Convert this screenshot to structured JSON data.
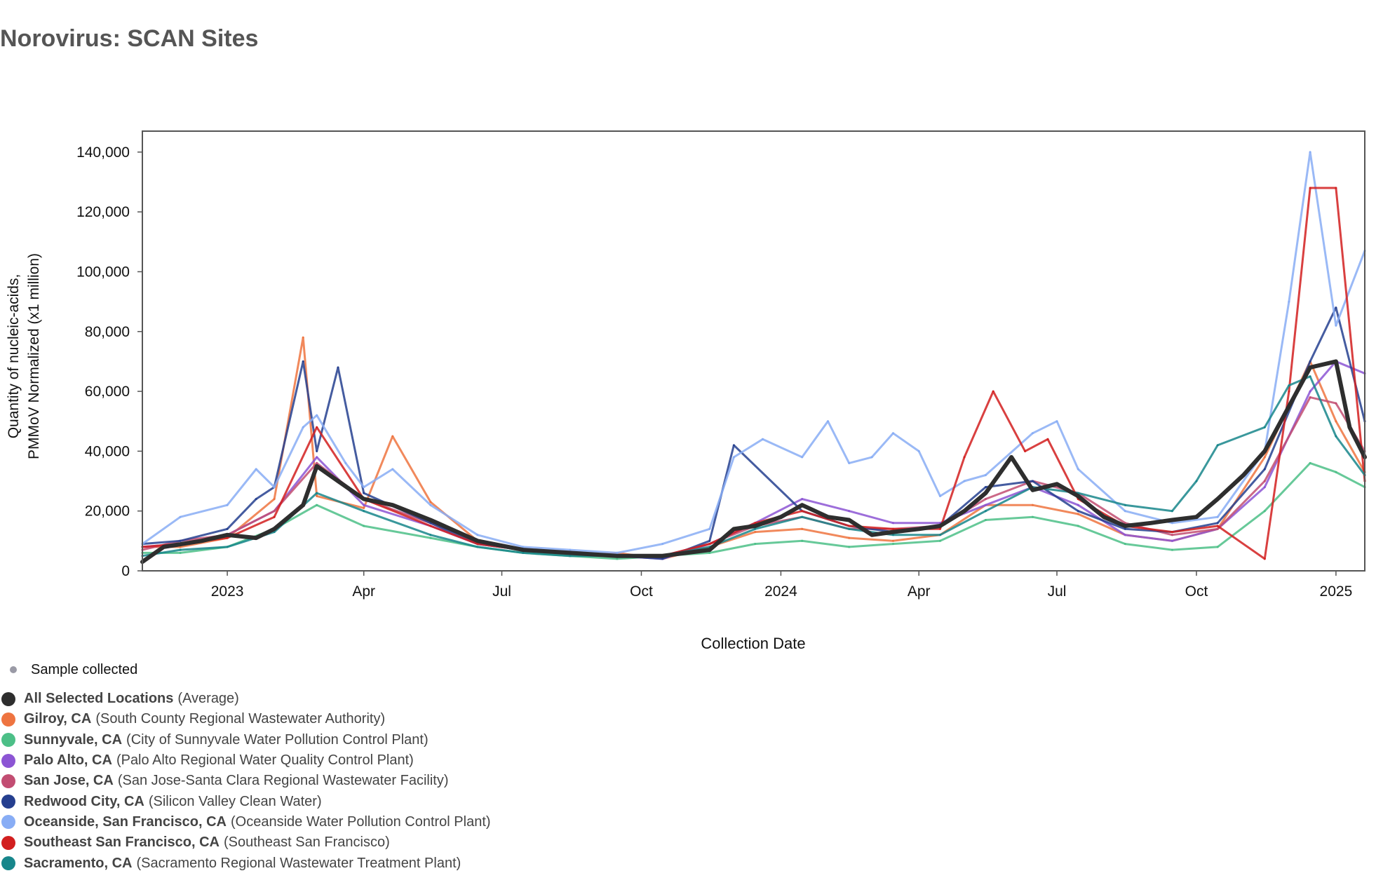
{
  "title": "Norovirus: SCAN Sites",
  "legend": {
    "sample_label": "Sample collected",
    "items": [
      {
        "name": "All Selected Locations",
        "detail": "(Average)",
        "color": "#2e2e2e"
      },
      {
        "name": "Gilroy, CA",
        "detail": "(South County Regional Wastewater Authority)",
        "color": "#ee7440"
      },
      {
        "name": "Sunnyvale, CA",
        "detail": "(City of Sunnyvale Water Pollution Control Plant)",
        "color": "#4cbf87"
      },
      {
        "name": "Palo Alto, CA",
        "detail": "(Palo Alto Regional Water Quality Control Plant)",
        "color": "#8c55d4"
      },
      {
        "name": "San Jose, CA",
        "detail": "(San Jose-Santa Clara Regional Wastewater Facility)",
        "color": "#c24d72"
      },
      {
        "name": "Redwood City, CA",
        "detail": "(Silicon Valley Clean Water)",
        "color": "#253f8f"
      },
      {
        "name": "Oceanside, San Francisco, CA",
        "detail": "(Oceanside Water Pollution Control Plant)",
        "color": "#88adf5"
      },
      {
        "name": "Southeast San Francisco, CA",
        "detail": "(Southeast San Francisco)",
        "color": "#d21f1f"
      },
      {
        "name": "Sacramento, CA",
        "detail": "(Sacramento Regional Wastewater Treatment Plant)",
        "color": "#17868b"
      }
    ]
  },
  "chart_data": {
    "type": "line",
    "xlabel": "Collection Date",
    "ylabel_lines": [
      "Quantity of nucleic-acids,",
      "PMMoV Normalized (x1 million)"
    ],
    "xlim": [
      "2022-11-06",
      "2025-01-20"
    ],
    "ylim": [
      0,
      147000
    ],
    "x_ticks": [
      {
        "date": "2023-01-01",
        "label": "2023"
      },
      {
        "date": "2023-04-01",
        "label": "Apr"
      },
      {
        "date": "2023-07-01",
        "label": "Jul"
      },
      {
        "date": "2023-10-01",
        "label": "Oct"
      },
      {
        "date": "2024-01-01",
        "label": "2024"
      },
      {
        "date": "2024-04-01",
        "label": "Apr"
      },
      {
        "date": "2024-07-01",
        "label": "Jul"
      },
      {
        "date": "2024-10-01",
        "label": "Oct"
      },
      {
        "date": "2025-01-01",
        "label": "2025"
      }
    ],
    "y_ticks": [
      {
        "value": 0,
        "label": "0"
      },
      {
        "value": 20000,
        "label": "20,000"
      },
      {
        "value": 40000,
        "label": "40,000"
      },
      {
        "value": 60000,
        "label": "60,000"
      },
      {
        "value": 80000,
        "label": "80,000"
      },
      {
        "value": 100000,
        "label": "100,000"
      },
      {
        "value": 120000,
        "label": "120,000"
      },
      {
        "value": 140000,
        "label": "140,000"
      }
    ],
    "grid": false,
    "series": [
      {
        "name": "Gilroy, CA",
        "color": "#ee7440",
        "x": [
          "2022-11-06",
          "2022-12-01",
          "2023-01-01",
          "2023-02-01",
          "2023-02-20",
          "2023-03-01",
          "2023-04-01",
          "2023-04-20",
          "2023-05-15",
          "2023-06-15",
          "2023-07-15",
          "2023-08-15",
          "2023-09-15",
          "2023-10-15",
          "2023-11-15",
          "2023-12-15",
          "2024-01-15",
          "2024-02-15",
          "2024-03-15",
          "2024-04-15",
          "2024-05-15",
          "2024-06-15",
          "2024-07-15",
          "2024-08-15",
          "2024-09-15",
          "2024-10-15",
          "2024-11-15",
          "2024-12-15",
          "2025-01-01",
          "2025-01-20"
        ],
        "values": [
          8000,
          8000,
          11000,
          24000,
          78000,
          25000,
          21000,
          45000,
          23000,
          10000,
          7000,
          5000,
          6000,
          4000,
          8000,
          13000,
          14000,
          11000,
          10000,
          12000,
          22000,
          22000,
          19000,
          12000,
          10000,
          14000,
          38000,
          70000,
          50000,
          33000
        ]
      },
      {
        "name": "Sunnyvale, CA",
        "color": "#4cbf87",
        "x": [
          "2022-11-06",
          "2022-12-01",
          "2023-01-01",
          "2023-02-01",
          "2023-03-01",
          "2023-04-01",
          "2023-05-15",
          "2023-06-15",
          "2023-07-15",
          "2023-08-15",
          "2023-09-15",
          "2023-10-15",
          "2023-11-15",
          "2023-12-15",
          "2024-01-15",
          "2024-02-15",
          "2024-03-15",
          "2024-04-15",
          "2024-05-15",
          "2024-06-15",
          "2024-07-15",
          "2024-08-15",
          "2024-09-15",
          "2024-10-15",
          "2024-11-15",
          "2024-12-15",
          "2025-01-01",
          "2025-01-20"
        ],
        "values": [
          6000,
          6000,
          8000,
          14000,
          22000,
          15000,
          11000,
          8000,
          6000,
          5000,
          4000,
          5000,
          6000,
          9000,
          10000,
          8000,
          9000,
          10000,
          17000,
          18000,
          15000,
          9000,
          7000,
          8000,
          20000,
          36000,
          33000,
          28000
        ]
      },
      {
        "name": "Palo Alto, CA",
        "color": "#8c55d4",
        "x": [
          "2022-11-06",
          "2022-12-01",
          "2023-01-01",
          "2023-02-01",
          "2023-03-01",
          "2023-04-01",
          "2023-05-15",
          "2023-06-15",
          "2023-07-15",
          "2023-08-15",
          "2023-09-15",
          "2023-10-15",
          "2023-11-15",
          "2023-12-15",
          "2024-01-15",
          "2024-02-15",
          "2024-03-15",
          "2024-04-15",
          "2024-05-15",
          "2024-06-15",
          "2024-07-15",
          "2024-08-15",
          "2024-09-15",
          "2024-10-15",
          "2024-11-15",
          "2024-12-15",
          "2025-01-01",
          "2025-01-20"
        ],
        "values": [
          8000,
          9000,
          12000,
          20000,
          38000,
          22000,
          15000,
          9000,
          7000,
          6000,
          5000,
          4000,
          9000,
          16000,
          24000,
          20000,
          16000,
          16000,
          22000,
          28000,
          22000,
          12000,
          10000,
          14000,
          28000,
          60000,
          70000,
          66000
        ]
      },
      {
        "name": "San Jose, CA",
        "color": "#c24d72",
        "x": [
          "2022-11-06",
          "2022-12-01",
          "2023-01-01",
          "2023-02-01",
          "2023-03-01",
          "2023-04-01",
          "2023-05-15",
          "2023-06-15",
          "2023-07-15",
          "2023-08-15",
          "2023-09-15",
          "2023-10-15",
          "2023-11-15",
          "2023-12-15",
          "2024-01-15",
          "2024-02-15",
          "2024-03-15",
          "2024-04-15",
          "2024-05-15",
          "2024-06-15",
          "2024-07-15",
          "2024-08-15",
          "2024-09-15",
          "2024-10-15",
          "2024-11-15",
          "2024-12-15",
          "2025-01-01",
          "2025-01-20"
        ],
        "values": [
          7000,
          10000,
          12000,
          20000,
          36000,
          24000,
          16000,
          10000,
          7000,
          6000,
          5000,
          5000,
          9000,
          15000,
          18000,
          14000,
          14000,
          15000,
          24000,
          30000,
          26000,
          16000,
          12000,
          14000,
          30000,
          58000,
          56000,
          40000
        ]
      },
      {
        "name": "Redwood City, CA",
        "color": "#253f8f",
        "x": [
          "2022-11-06",
          "2022-12-01",
          "2023-01-01",
          "2023-01-20",
          "2023-02-01",
          "2023-02-20",
          "2023-03-01",
          "2023-03-15",
          "2023-04-01",
          "2023-05-15",
          "2023-06-15",
          "2023-07-15",
          "2023-08-15",
          "2023-09-15",
          "2023-10-15",
          "2023-11-15",
          "2023-12-01",
          "2024-01-15",
          "2024-02-15",
          "2024-03-15",
          "2024-04-15",
          "2024-05-15",
          "2024-06-15",
          "2024-07-15",
          "2024-08-15",
          "2024-09-15",
          "2024-10-15",
          "2024-11-15",
          "2024-12-15",
          "2025-01-01",
          "2025-01-20"
        ],
        "values": [
          9000,
          10000,
          14000,
          24000,
          28000,
          70000,
          40000,
          68000,
          26000,
          16000,
          9000,
          7000,
          6000,
          5000,
          4000,
          10000,
          42000,
          20000,
          15000,
          13000,
          15000,
          28000,
          30000,
          20000,
          14000,
          13000,
          16000,
          34000,
          70000,
          88000,
          50000
        ]
      },
      {
        "name": "Oceanside, San Francisco, CA",
        "color": "#88adf5",
        "x": [
          "2022-11-06",
          "2022-12-01",
          "2023-01-01",
          "2023-01-20",
          "2023-02-01",
          "2023-02-20",
          "2023-03-01",
          "2023-03-20",
          "2023-04-01",
          "2023-04-20",
          "2023-05-15",
          "2023-06-15",
          "2023-07-15",
          "2023-08-15",
          "2023-09-15",
          "2023-10-15",
          "2023-11-15",
          "2023-12-01",
          "2023-12-20",
          "2024-01-15",
          "2024-02-01",
          "2024-02-15",
          "2024-03-01",
          "2024-03-15",
          "2024-04-01",
          "2024-04-15",
          "2024-05-01",
          "2024-05-15",
          "2024-06-15",
          "2024-07-01",
          "2024-07-15",
          "2024-08-15",
          "2024-09-15",
          "2024-10-15",
          "2024-11-15",
          "2024-12-01",
          "2024-12-15",
          "2025-01-01",
          "2025-01-20"
        ],
        "values": [
          9000,
          18000,
          22000,
          34000,
          28000,
          48000,
          52000,
          36000,
          28000,
          34000,
          22000,
          12000,
          8000,
          7000,
          6000,
          9000,
          14000,
          38000,
          44000,
          38000,
          50000,
          36000,
          38000,
          46000,
          40000,
          25000,
          30000,
          32000,
          46000,
          50000,
          34000,
          20000,
          16000,
          18000,
          40000,
          90000,
          140000,
          82000,
          107000
        ]
      },
      {
        "name": "Southeast San Francisco, CA",
        "color": "#d21f1f",
        "x": [
          "2022-11-06",
          "2022-12-01",
          "2023-01-01",
          "2023-02-01",
          "2023-03-01",
          "2023-04-01",
          "2023-05-15",
          "2023-06-15",
          "2023-07-15",
          "2023-08-15",
          "2023-09-15",
          "2023-10-15",
          "2023-11-15",
          "2023-12-15",
          "2024-01-15",
          "2024-02-15",
          "2024-03-15",
          "2024-04-15",
          "2024-05-01",
          "2024-05-20",
          "2024-06-10",
          "2024-06-25",
          "2024-07-15",
          "2024-08-15",
          "2024-09-15",
          "2024-10-15",
          "2024-11-15",
          "2024-12-01",
          "2024-12-15",
          "2025-01-01",
          "2025-01-20"
        ],
        "values": [
          8000,
          9000,
          11000,
          18000,
          48000,
          24000,
          15000,
          9000,
          7000,
          6000,
          5000,
          5000,
          9000,
          16000,
          20000,
          15000,
          14000,
          14000,
          38000,
          60000,
          40000,
          44000,
          24000,
          15000,
          13000,
          15000,
          4000,
          60000,
          128000,
          128000,
          30000
        ]
      },
      {
        "name": "Sacramento, CA",
        "color": "#17868b",
        "x": [
          "2022-11-06",
          "2022-12-01",
          "2023-01-01",
          "2023-02-01",
          "2023-03-01",
          "2023-04-01",
          "2023-05-15",
          "2023-06-15",
          "2023-07-15",
          "2023-08-15",
          "2023-09-15",
          "2023-10-15",
          "2023-11-15",
          "2023-12-15",
          "2024-01-15",
          "2024-02-15",
          "2024-03-15",
          "2024-04-15",
          "2024-05-15",
          "2024-06-15",
          "2024-07-15",
          "2024-08-15",
          "2024-09-15",
          "2024-10-01",
          "2024-10-15",
          "2024-11-15",
          "2024-12-01",
          "2024-12-15",
          "2025-01-01",
          "2025-01-20"
        ],
        "values": [
          5000,
          7000,
          8000,
          13000,
          26000,
          20000,
          12000,
          8000,
          6000,
          5000,
          5000,
          5000,
          8000,
          14000,
          18000,
          14000,
          12000,
          12000,
          20000,
          28000,
          26000,
          22000,
          20000,
          30000,
          42000,
          48000,
          62000,
          65000,
          45000,
          32000
        ]
      },
      {
        "name": "All Selected Locations",
        "color": "#2e2e2e",
        "x": [
          "2022-11-06",
          "2022-11-20",
          "2022-12-15",
          "2023-01-01",
          "2023-01-20",
          "2023-02-01",
          "2023-02-20",
          "2023-03-01",
          "2023-03-15",
          "2023-04-01",
          "2023-04-20",
          "2023-05-15",
          "2023-06-15",
          "2023-07-15",
          "2023-08-15",
          "2023-09-15",
          "2023-10-15",
          "2023-11-15",
          "2023-12-01",
          "2023-12-15",
          "2024-01-01",
          "2024-01-15",
          "2024-02-01",
          "2024-02-15",
          "2024-03-01",
          "2024-03-15",
          "2024-04-01",
          "2024-04-15",
          "2024-05-01",
          "2024-05-15",
          "2024-06-01",
          "2024-06-15",
          "2024-07-01",
          "2024-07-15",
          "2024-08-01",
          "2024-08-15",
          "2024-09-01",
          "2024-09-15",
          "2024-10-01",
          "2024-10-15",
          "2024-11-01",
          "2024-11-15",
          "2024-12-01",
          "2024-12-15",
          "2025-01-01",
          "2025-01-10",
          "2025-01-20"
        ],
        "values": [
          3000,
          8000,
          10000,
          12000,
          11000,
          14000,
          22000,
          35000,
          30000,
          24000,
          22000,
          17000,
          10000,
          7000,
          6000,
          5000,
          5000,
          7000,
          14000,
          15000,
          18000,
          22000,
          18000,
          17000,
          12000,
          13000,
          14000,
          15000,
          20000,
          26000,
          38000,
          27000,
          29000,
          25000,
          18000,
          15000,
          16000,
          17000,
          18000,
          24000,
          32000,
          40000,
          55000,
          68000,
          70000,
          48000,
          38000
        ]
      }
    ]
  }
}
